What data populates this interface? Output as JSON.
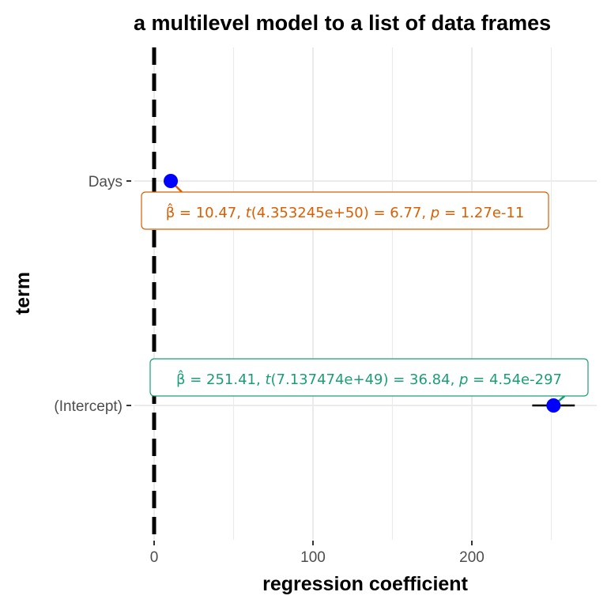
{
  "chart_data": {
    "type": "scatter",
    "title": "a multilevel model to a list of data frames",
    "xlabel": "regression coefficient",
    "ylabel": "term",
    "xlim": [
      0,
      277
    ],
    "x_ticks": [
      0,
      100,
      200
    ],
    "x_tick_labels": [
      "0",
      "100",
      "200"
    ],
    "grid": true,
    "reference_line": {
      "x": 0,
      "style": "dashed"
    },
    "terms": [
      "Days",
      "(Intercept)"
    ],
    "points": [
      {
        "term": "Days",
        "estimate": 10.47,
        "conf_low": 10.47,
        "conf_high": 10.47,
        "color": "#d95f02",
        "label_parts": [
          "β̂ = 10.47,  ",
          "t",
          "(4.353245e+50) = 6.77,  ",
          "p",
          " = 1.27e-11"
        ]
      },
      {
        "term": "(Intercept)",
        "estimate": 251.41,
        "conf_low": 238.0,
        "conf_high": 264.8,
        "color": "#1b9e77",
        "label_parts": [
          "β̂ = 251.41,  ",
          "t",
          "(7.137474e+49) = 36.84,  ",
          "p",
          " = 4.54e-297"
        ]
      }
    ],
    "point_color": "#0000ff"
  }
}
